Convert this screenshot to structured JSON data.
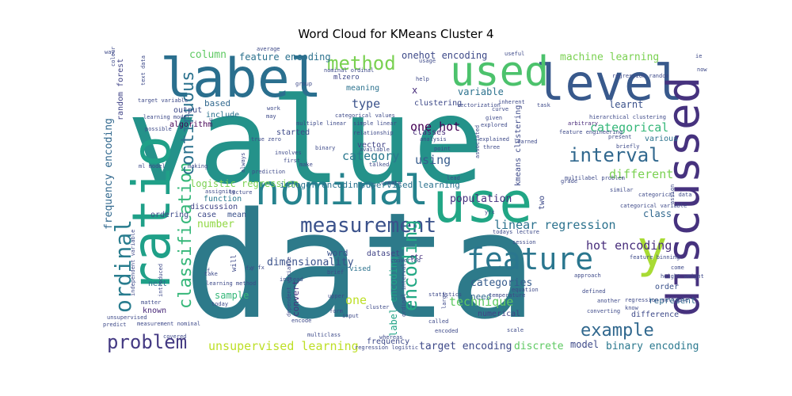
{
  "chart_data": {
    "type": "wordcloud",
    "title": "Word Cloud for KMeans Cluster 4",
    "words": [
      {
        "text": "data",
        "color": "#2d7a8a"
      },
      {
        "text": "value",
        "color": "#24928a"
      },
      {
        "text": "label",
        "color": "#2a6f8e"
      },
      {
        "text": "level",
        "color": "#38598c"
      },
      {
        "text": "used",
        "color": "#4cc26c"
      },
      {
        "text": "use",
        "color": "#21a685"
      },
      {
        "text": "nominal",
        "color": "#26838e"
      },
      {
        "text": "ratio",
        "color": "#1fa088"
      },
      {
        "text": "discussed",
        "color": "#46327e"
      },
      {
        "text": "y",
        "color": "#a8db34"
      },
      {
        "text": "feature",
        "color": "#2a768e"
      },
      {
        "text": "method",
        "color": "#7ad151"
      },
      {
        "text": "measurement",
        "color": "#3b528b"
      },
      {
        "text": "ordinal",
        "color": "#287c8e"
      },
      {
        "text": "classification",
        "color": "#35b779"
      },
      {
        "text": "continuous",
        "color": "#2c728e"
      },
      {
        "text": "interval",
        "color": "#31688e"
      },
      {
        "text": "encoding",
        "color": "#22a884"
      },
      {
        "text": "problem",
        "color": "#443a83"
      },
      {
        "text": "example",
        "color": "#31688e"
      },
      {
        "text": "one hot",
        "color": "#440154"
      },
      {
        "text": "category",
        "color": "#2a788e"
      },
      {
        "text": "different",
        "color": "#7ad151"
      },
      {
        "text": "type",
        "color": "#3b528b"
      },
      {
        "text": "using",
        "color": "#365c8d"
      },
      {
        "text": "categorical",
        "color": "#35b779"
      },
      {
        "text": "linear regression",
        "color": "#2c728e"
      },
      {
        "text": "hot encoding",
        "color": "#472d7b"
      },
      {
        "text": "technique",
        "color": "#5ec962"
      },
      {
        "text": "unsupervised learning",
        "color": "#bddf26"
      },
      {
        "text": "target encoding",
        "color": "#3e4a89"
      },
      {
        "text": "binary encoding",
        "color": "#2a788e"
      },
      {
        "text": "categories",
        "color": "#365c8d"
      },
      {
        "text": "population",
        "color": "#46327e"
      },
      {
        "text": "dimensionality",
        "color": "#3b528b"
      },
      {
        "text": "label encoding",
        "color": "#20a386"
      },
      {
        "text": "frequency encoding",
        "color": "#31688e"
      },
      {
        "text": "column",
        "color": "#5ec962"
      },
      {
        "text": "feature encoding",
        "color": "#2c728e"
      },
      {
        "text": "onehot encoding",
        "color": "#3e4a89"
      },
      {
        "text": "machine learning",
        "color": "#7ad151"
      },
      {
        "text": "learnt",
        "color": "#3b528b"
      },
      {
        "text": "variable",
        "color": "#2c728e"
      },
      {
        "text": "x",
        "color": "#472d7b"
      },
      {
        "text": "clustering",
        "color": "#3e4a89"
      },
      {
        "text": "random forest",
        "color": "#414487"
      },
      {
        "text": "number",
        "color": "#90d743"
      },
      {
        "text": "logistic regression",
        "color": "#7ad151"
      },
      {
        "text": "integer encoding",
        "color": "#2c728e"
      },
      {
        "text": "supervised learning",
        "color": "#2c728e"
      },
      {
        "text": "one",
        "color": "#bddf26"
      },
      {
        "text": "sample",
        "color": "#35b779"
      },
      {
        "text": "convert",
        "color": "#46327e"
      },
      {
        "text": "word",
        "color": "#3b528b"
      },
      {
        "text": "dataset",
        "color": "#414487"
      },
      {
        "text": "need",
        "color": "#31688e"
      },
      {
        "text": "discrete",
        "color": "#5ec962"
      },
      {
        "text": "model",
        "color": "#3e4a89"
      },
      {
        "text": "class",
        "color": "#31688e"
      },
      {
        "text": "based",
        "color": "#31688e"
      },
      {
        "text": "output",
        "color": "#3e4a89"
      },
      {
        "text": "algorithm",
        "color": "#440154"
      },
      {
        "text": "include",
        "color": "#2c728e"
      },
      {
        "text": "started",
        "color": "#3e4a89"
      },
      {
        "text": "vector",
        "color": "#414487"
      },
      {
        "text": "classes",
        "color": "#472d7b"
      },
      {
        "text": "function",
        "color": "#2a788e"
      },
      {
        "text": "case",
        "color": "#3e4a89"
      },
      {
        "text": "mean",
        "color": "#3b528b"
      },
      {
        "text": "discussion",
        "color": "#414487"
      },
      {
        "text": "ordering",
        "color": "#3e4a89"
      },
      {
        "text": "next",
        "color": "#2c728e"
      },
      {
        "text": "known",
        "color": "#482878"
      },
      {
        "text": "meaning",
        "color": "#2c728e"
      },
      {
        "text": "order",
        "color": "#3b528b"
      },
      {
        "text": "represent",
        "color": "#31688e"
      },
      {
        "text": "difference",
        "color": "#3e4a89"
      },
      {
        "text": "various",
        "color": "#2c728e"
      },
      {
        "text": "frequency",
        "color": "#3e4a89"
      },
      {
        "text": "kmeans clustering",
        "color": "#3e4a89"
      },
      {
        "text": "numerical",
        "color": "#414487"
      },
      {
        "text": "supervised",
        "color": "#2c728e"
      },
      {
        "text": "two",
        "color": "#3e4a89"
      },
      {
        "text": "etc",
        "color": "#472d7b"
      },
      {
        "text": "ml",
        "color": "#414487"
      },
      {
        "text": "zero",
        "color": "#3e4a89"
      },
      {
        "text": "categorical values",
        "color": "#3e4a89"
      },
      {
        "text": "categorical variable",
        "color": "#3e4a89"
      },
      {
        "text": "categorical data",
        "color": "#3e4a89"
      },
      {
        "text": "hierarchical clustering",
        "color": "#3e4a89"
      },
      {
        "text": "vectorization",
        "color": "#3e4a89"
      },
      {
        "text": "arbitrary",
        "color": "#482878"
      },
      {
        "text": "multilabel problem",
        "color": "#3e4a89"
      },
      {
        "text": "target variable",
        "color": "#3e4a89"
      },
      {
        "text": "learning model",
        "color": "#3e4a89"
      },
      {
        "text": "ml model",
        "color": "#3e4a89"
      },
      {
        "text": "making",
        "color": "#3e4a89"
      },
      {
        "text": "assigning",
        "color": "#3e4a89"
      },
      {
        "text": "lecture",
        "color": "#3e4a89"
      },
      {
        "text": "introduced",
        "color": "#3e4a89"
      },
      {
        "text": "learning method",
        "color": "#3e4a89"
      },
      {
        "text": "measurement nominal",
        "color": "#3e4a89"
      },
      {
        "text": "unsupervised",
        "color": "#3e4a89"
      },
      {
        "text": "predict",
        "color": "#3e4a89"
      },
      {
        "text": "covered",
        "color": "#3e4a89"
      },
      {
        "text": "regression logistic",
        "color": "#3e4a89"
      },
      {
        "text": "whereas",
        "color": "#3e4a89"
      },
      {
        "text": "scale",
        "color": "#3e4a89"
      },
      {
        "text": "height weight",
        "color": "#3e4a89"
      },
      {
        "text": "feature binning",
        "color": "#3e4a89"
      },
      {
        "text": "regression multiple",
        "color": "#3e4a89"
      },
      {
        "text": "another",
        "color": "#3e4a89"
      },
      {
        "text": "converting",
        "color": "#3e4a89"
      },
      {
        "text": "approach",
        "color": "#3e4a89"
      },
      {
        "text": "defined",
        "color": "#3e4a89"
      },
      {
        "text": "todays lecture",
        "color": "#3e4a89"
      },
      {
        "text": "session",
        "color": "#3e4a89"
      },
      {
        "text": "converted",
        "color": "#3e4a89"
      },
      {
        "text": "yfx",
        "color": "#3e4a89"
      },
      {
        "text": "create",
        "color": "#3e4a89"
      },
      {
        "text": "talked",
        "color": "#3e4a89"
      },
      {
        "text": "make",
        "color": "#3e4a89"
      },
      {
        "text": "first",
        "color": "#3e4a89"
      },
      {
        "text": "prediction",
        "color": "#3e4a89"
      },
      {
        "text": "involves",
        "color": "#3e4a89"
      },
      {
        "text": "multiple linear",
        "color": "#3e4a89"
      },
      {
        "text": "simple linear",
        "color": "#3e4a89"
      },
      {
        "text": "relationship",
        "color": "#3e4a89"
      },
      {
        "text": "binary",
        "color": "#3e4a89"
      },
      {
        "text": "available",
        "color": "#3e4a89"
      },
      {
        "text": "analysis",
        "color": "#3e4a89"
      },
      {
        "text": "point",
        "color": "#3e4a89"
      },
      {
        "text": "three",
        "color": "#3e4a89"
      },
      {
        "text": "explained",
        "color": "#3e4a89"
      },
      {
        "text": "explored",
        "color": "#3e4a89"
      },
      {
        "text": "given",
        "color": "#3e4a89"
      },
      {
        "text": "curve",
        "color": "#3e4a89"
      },
      {
        "text": "inherent",
        "color": "#3e4a89"
      },
      {
        "text": "task",
        "color": "#3e4a89"
      },
      {
        "text": "feature engineering",
        "color": "#3e4a89"
      },
      {
        "text": "briefly",
        "color": "#3e4a89"
      },
      {
        "text": "present",
        "color": "#3e4a89"
      },
      {
        "text": "similar",
        "color": "#3e4a89"
      },
      {
        "text": "assign",
        "color": "#3e4a89"
      },
      {
        "text": "grade",
        "color": "#3e4a89"
      },
      {
        "text": "regression random",
        "color": "#3e4a89"
      },
      {
        "text": "temperature",
        "color": "#3e4a89"
      },
      {
        "text": "statistics",
        "color": "#3e4a89"
      },
      {
        "text": "large",
        "color": "#3e4a89"
      },
      {
        "text": "called",
        "color": "#3e4a89"
      },
      {
        "text": "encoded",
        "color": "#3e4a89"
      },
      {
        "text": "cluster",
        "color": "#3e4a89"
      },
      {
        "text": "input",
        "color": "#3e4a89"
      },
      {
        "text": "form",
        "color": "#3e4a89"
      },
      {
        "text": "lead",
        "color": "#3e4a89"
      },
      {
        "text": "today",
        "color": "#3e4a89"
      },
      {
        "text": "matter",
        "color": "#3e4a89"
      },
      {
        "text": "instead",
        "color": "#3e4a89"
      },
      {
        "text": "brief",
        "color": "#3e4a89"
      },
      {
        "text": "dependent variable",
        "color": "#3e4a89"
      },
      {
        "text": "independent variable",
        "color": "#3e4a89"
      },
      {
        "text": "true zero",
        "color": "#3e4a89"
      },
      {
        "text": "always",
        "color": "#3e4a89"
      },
      {
        "text": "average",
        "color": "#3e4a89"
      },
      {
        "text": "nominal ordinal",
        "color": "#3e4a89"
      },
      {
        "text": "useful",
        "color": "#3e4a89"
      },
      {
        "text": "usage",
        "color": "#3e4a89"
      },
      {
        "text": "help",
        "color": "#3e4a89"
      },
      {
        "text": "group",
        "color": "#3e4a89"
      },
      {
        "text": "colour",
        "color": "#3e4a89"
      },
      {
        "text": "way",
        "color": "#3e4a89"
      },
      {
        "text": "text data",
        "color": "#3e4a89"
      },
      {
        "text": "ie",
        "color": "#3e4a89"
      },
      {
        "text": "now",
        "color": "#3e4a89"
      },
      {
        "text": "come",
        "color": "#3e4a89"
      },
      {
        "text": "know",
        "color": "#3e4a89"
      },
      {
        "text": "possible",
        "color": "#3e4a89"
      },
      {
        "text": "multiclass",
        "color": "#3e4a89"
      },
      {
        "text": "will",
        "color": "#3e4a89"
      },
      {
        "text": "u",
        "color": "#3e4a89"
      },
      {
        "text": "f",
        "color": "#3e4a89"
      },
      {
        "text": "fx",
        "color": "#3e4a89"
      },
      {
        "text": "y fx",
        "color": "#3e4a89"
      },
      {
        "text": "work",
        "color": "#3e4a89"
      },
      {
        "text": "may",
        "color": "#3e4a89"
      },
      {
        "text": "encode",
        "color": "#3e4a89"
      },
      {
        "text": "ordinal interval",
        "color": "#3e4a89"
      },
      {
        "text": "equation",
        "color": "#3e4a89"
      },
      {
        "text": "associated",
        "color": "#3e4a89"
      },
      {
        "text": "upper",
        "color": "#3e4a89"
      },
      {
        "text": "learned",
        "color": "#3e4a89"
      },
      {
        "text": "take",
        "color": "#3e4a89"
      }
    ]
  }
}
